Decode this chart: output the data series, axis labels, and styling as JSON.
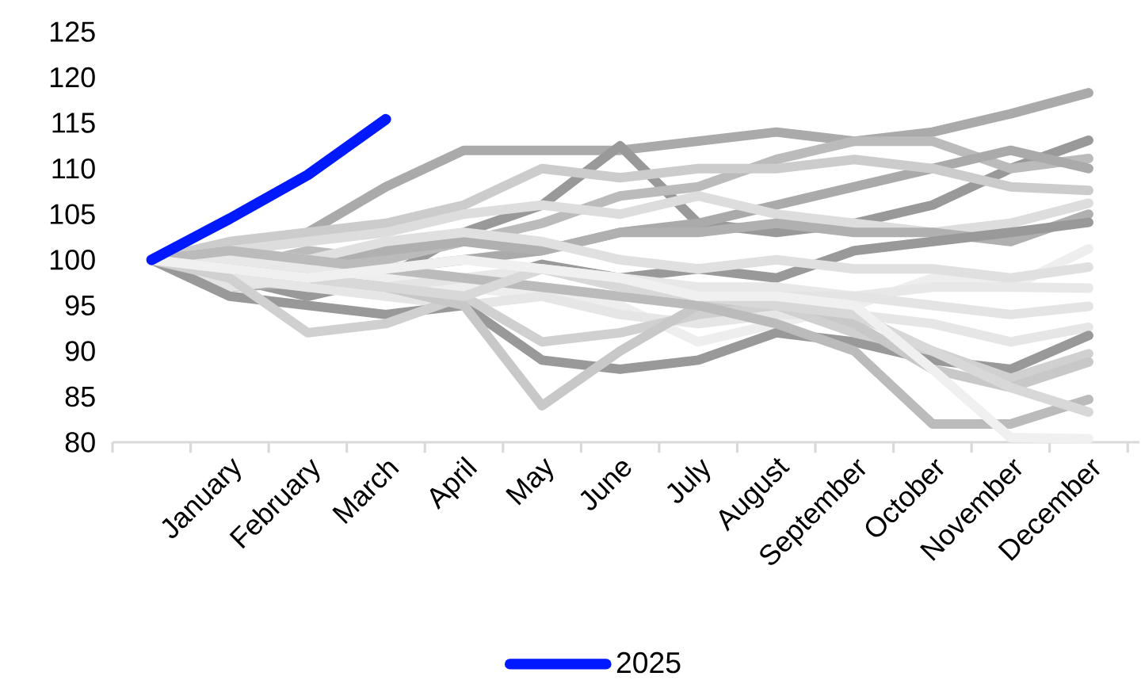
{
  "chart_data": {
    "type": "line",
    "categories": [
      null,
      "January",
      "February",
      "March",
      "April",
      "May",
      "June",
      "July",
      "August",
      "September",
      "October",
      "November",
      "December"
    ],
    "ylim": [
      80,
      125
    ],
    "yticks": [
      80,
      85,
      90,
      95,
      100,
      105,
      110,
      115,
      120,
      125
    ],
    "grid": false,
    "legend": "bottom",
    "marker": "none",
    "line_style": "solid",
    "series": [
      {
        "color": "#aaaaaa",
        "values": [
          100,
          101,
          103,
          108,
          112,
          112,
          112,
          113,
          114,
          113,
          114,
          116,
          118.3
        ]
      },
      {
        "color": "#999999",
        "values": [
          100,
          98,
          96,
          98,
          103,
          106,
          112.5,
          104,
          103,
          104,
          106,
          110,
          113.1
        ]
      },
      {
        "color": "#bbbbbb",
        "values": [
          100,
          99,
          101,
          100,
          102,
          104,
          107,
          108,
          111,
          113,
          113,
          110,
          111.1
        ]
      },
      {
        "color": "#aaaaaa",
        "values": [
          100,
          97,
          97.5,
          99,
          100,
          101,
          103,
          104,
          106,
          108,
          110,
          112,
          110
        ]
      },
      {
        "color": "#cccccc",
        "values": [
          100,
          102,
          103,
          104,
          106,
          110,
          109,
          110,
          110,
          111,
          110,
          108,
          107.6
        ]
      },
      {
        "color": "#dddddd",
        "values": [
          100,
          101,
          102,
          103,
          105,
          106,
          105,
          107,
          105,
          104,
          103,
          104,
          106.2
        ]
      },
      {
        "color": "#b0b0b0",
        "values": [
          100,
          99,
          100,
          101,
          102,
          101,
          103,
          103,
          104,
          103,
          103,
          102,
          105
        ]
      },
      {
        "color": "#999999",
        "values": [
          100,
          98,
          99,
          98,
          97,
          99.5,
          98,
          99,
          98,
          101,
          102,
          103,
          104.1
        ]
      },
      {
        "color": "#eeeeee",
        "values": [
          100,
          99,
          97,
          98,
          97,
          96,
          95,
          91,
          93,
          95,
          98,
          97,
          101.2
        ]
      },
      {
        "color": "#e0e0e0",
        "values": [
          100,
          101,
          100,
          102,
          103,
          102,
          100,
          99,
          100,
          99,
          99,
          98,
          99.2
        ]
      },
      {
        "color": "#e8e8e8",
        "values": [
          100,
          100,
          99,
          99,
          98,
          99,
          98,
          97,
          97,
          96,
          97,
          97,
          96.9
        ]
      },
      {
        "color": "#e4e4e4",
        "values": [
          100,
          97,
          98,
          97,
          98,
          97,
          96,
          95,
          96,
          96,
          95,
          94,
          94.9
        ]
      },
      {
        "color": "#e6e6e6",
        "values": [
          100,
          98,
          97,
          96,
          95,
          96,
          94,
          93,
          94,
          94,
          93,
          91,
          92.6
        ]
      },
      {
        "color": "#999999",
        "values": [
          100,
          96,
          95,
          94,
          95,
          89,
          88,
          89,
          92,
          91,
          89,
          88,
          91.7
        ]
      },
      {
        "color": "#d0d0d0",
        "values": [
          100,
          98,
          92,
          93,
          96,
          91,
          92,
          94,
          95,
          92,
          90,
          87,
          89.7
        ]
      },
      {
        "color": "#c8c8c8",
        "values": [
          100,
          99,
          98,
          97,
          95,
          84,
          90,
          95,
          96,
          93,
          88,
          86,
          88.8
        ]
      },
      {
        "color": "#bbbbbb",
        "values": [
          100,
          101,
          100,
          99,
          98,
          97,
          96,
          95,
          93,
          90,
          82,
          82,
          84.7
        ]
      },
      {
        "color": "#d8d8d8",
        "values": [
          100,
          99,
          98,
          97,
          96,
          99,
          97,
          96,
          95,
          94,
          90,
          86,
          83.3
        ]
      },
      {
        "color": "#f0f0f0",
        "values": [
          100,
          99,
          98,
          99,
          100,
          99,
          98,
          96,
          96,
          95,
          88,
          80.5,
          80.4
        ]
      },
      {
        "name": "2025",
        "color": "#0019ff",
        "values": [
          100,
          104.5,
          109.3,
          115.4,
          null,
          null,
          null,
          null,
          null,
          null,
          null,
          null,
          null
        ]
      }
    ]
  }
}
